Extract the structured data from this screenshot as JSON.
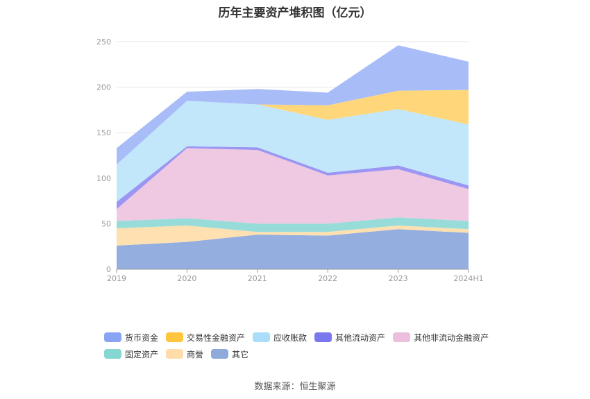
{
  "title": "历年主要资产堆积图（亿元）",
  "source": "数据来源：恒生聚源",
  "chart_data": {
    "type": "area",
    "stacked": true,
    "categories": [
      "2019",
      "2020",
      "2021",
      "2022",
      "2023",
      "2024H1"
    ],
    "ylim": [
      0,
      250
    ],
    "yticks": [
      0,
      50,
      100,
      150,
      200,
      250
    ],
    "grid": true,
    "legend_position": "bottom",
    "series": [
      {
        "name": "其它",
        "color": "#94aee0",
        "values": [
          26,
          30,
          38,
          37,
          44,
          40
        ]
      },
      {
        "name": "商誉",
        "color": "#ffe0b0",
        "values": [
          19,
          18,
          3,
          4,
          4,
          4
        ]
      },
      {
        "name": "固定资产",
        "color": "#98dcd9",
        "values": [
          8,
          8,
          9,
          9,
          9,
          9
        ]
      },
      {
        "name": "其他非流动金融资产",
        "color": "#efc8e2",
        "values": [
          13,
          77,
          81,
          53,
          53,
          35
        ]
      },
      {
        "name": "其他流动资产",
        "color": "#9b96f2",
        "values": [
          8,
          2,
          3,
          3,
          4,
          4
        ]
      },
      {
        "name": "应收账款",
        "color": "#c2e6fa",
        "values": [
          41,
          50,
          47,
          58,
          62,
          67
        ]
      },
      {
        "name": "交易性金融资产",
        "color": "#ffd77a",
        "values": [
          0,
          0,
          0,
          16,
          20,
          38
        ]
      },
      {
        "name": "货币资金",
        "color": "#a8bcf8",
        "values": [
          18,
          10,
          17,
          14,
          50,
          31
        ]
      }
    ]
  },
  "legend": {
    "row1": [
      {
        "name": "货币资金",
        "color": "#8aa4f4"
      },
      {
        "name": "交易性金融资产",
        "color": "#ffc53d"
      },
      {
        "name": "应收账款",
        "color": "#a9ddf8"
      },
      {
        "name": "其他流动资产",
        "color": "#7b78ee"
      },
      {
        "name": "其他非流动金融资产",
        "color": "#ebbfdd"
      }
    ],
    "row2": [
      {
        "name": "固定资产",
        "color": "#86d6d2"
      },
      {
        "name": "商誉",
        "color": "#ffdcaa"
      },
      {
        "name": "其它",
        "color": "#8fa9da"
      }
    ]
  }
}
